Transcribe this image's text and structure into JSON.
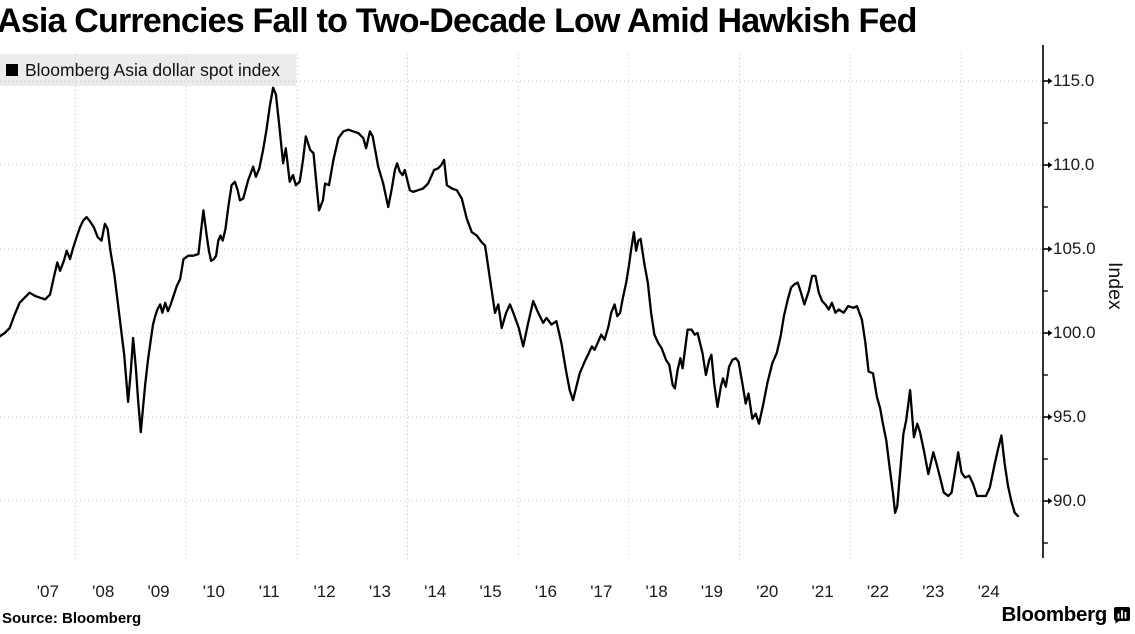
{
  "header": {
    "title": "Asia Currencies Fall to Two-Decade Low Amid Hawkish Fed"
  },
  "legend": {
    "label": "Bloomberg Asia dollar spot index",
    "swatch_color": "#000000"
  },
  "footer": {
    "source": "Source: Bloomberg",
    "brand": "Bloomberg",
    "brand_icon": "bloomberg-chart-icon"
  },
  "colors": {
    "line": "#000000",
    "gridline": "#c3c3c3",
    "legend_background": "#ececec",
    "background": "#ffffff"
  },
  "chart_data": {
    "type": "line",
    "title": "Asia Currencies Fall to Two-Decade Low Amid Hawkish Fed",
    "xlabel": "",
    "ylabel": "Index",
    "ylim": [
      86.5,
      117.1
    ],
    "x_range": [
      2006.63,
      2025.48
    ],
    "grid": true,
    "legend_position": "top-left",
    "yticks": [
      115,
      110,
      105,
      100,
      95,
      90
    ],
    "ytick_labels": [
      "115.0",
      "110.0",
      "105.0",
      "100.0",
      "95.0",
      "90.0"
    ],
    "yticks_minor": [
      112.5,
      107.5,
      102.5,
      97.5,
      92.5,
      87.5
    ],
    "x_tick_labels": [
      "'07",
      "'08",
      "'09",
      "'10",
      "'11",
      "'12",
      "'13",
      "'14",
      "'15",
      "'16",
      "'17",
      "'18",
      "'19",
      "'20",
      "'21",
      "'22",
      "'23",
      "'24"
    ],
    "x_tick_years": [
      2007,
      2008,
      2009,
      2010,
      2011,
      2012,
      2013,
      2014,
      2015,
      2016,
      2017,
      2018,
      2019,
      2020,
      2021,
      2022,
      2023,
      2024
    ],
    "grid_years": [
      2008,
      2010,
      2012,
      2014,
      2016,
      2018,
      2020,
      2022,
      2024
    ],
    "series": [
      {
        "name": "Bloomberg Asia dollar spot index",
        "color": "#000000",
        "x": [
          2006.63,
          2006.72,
          2006.81,
          2006.9,
          2006.99,
          2007.08,
          2007.17,
          2007.27,
          2007.36,
          2007.45,
          2007.54,
          2007.6,
          2007.67,
          2007.72,
          2007.79,
          2007.84,
          2007.9,
          2007.96,
          2008.02,
          2008.08,
          2008.14,
          2008.2,
          2008.27,
          2008.33,
          2008.4,
          2008.47,
          2008.53,
          2008.58,
          2008.63,
          2008.7,
          2008.76,
          2008.82,
          2008.88,
          2008.95,
          2009.0,
          2009.04,
          2009.09,
          2009.13,
          2009.18,
          2009.22,
          2009.26,
          2009.31,
          2009.36,
          2009.4,
          2009.44,
          2009.48,
          2009.53,
          2009.57,
          2009.62,
          2009.67,
          2009.72,
          2009.77,
          2009.83,
          2009.89,
          2009.95,
          2010.04,
          2010.13,
          2010.22,
          2010.31,
          2010.37,
          2010.41,
          2010.45,
          2010.5,
          2010.54,
          2010.58,
          2010.62,
          2010.66,
          2010.71,
          2010.76,
          2010.82,
          2010.88,
          2010.93,
          2010.97,
          2011.03,
          2011.12,
          2011.21,
          2011.26,
          2011.32,
          2011.39,
          2011.45,
          2011.51,
          2011.57,
          2011.62,
          2011.68,
          2011.75,
          2011.8,
          2011.87,
          2011.93,
          2011.98,
          2012.05,
          2012.11,
          2012.16,
          2012.24,
          2012.3,
          2012.4,
          2012.47,
          2012.51,
          2012.58,
          2012.66,
          2012.75,
          2012.84,
          2012.93,
          2013.02,
          2013.11,
          2013.2,
          2013.25,
          2013.32,
          2013.37,
          2013.47,
          2013.56,
          2013.65,
          2013.71,
          2013.77,
          2013.81,
          2013.86,
          2013.91,
          2013.95,
          2014.04,
          2014.1,
          2014.19,
          2014.28,
          2014.37,
          2014.48,
          2014.55,
          2014.61,
          2014.66,
          2014.71,
          2014.8,
          2014.89,
          2014.98,
          2015.07,
          2015.16,
          2015.25,
          2015.34,
          2015.4,
          2015.49,
          2015.58,
          2015.64,
          2015.7,
          2015.78,
          2015.85,
          2015.91,
          2016.01,
          2016.09,
          2016.18,
          2016.27,
          2016.36,
          2016.45,
          2016.51,
          2016.6,
          2016.69,
          2016.78,
          2016.86,
          2016.93,
          2016.99,
          2017.11,
          2017.2,
          2017.26,
          2017.33,
          2017.38,
          2017.5,
          2017.56,
          2017.63,
          2017.68,
          2017.74,
          2017.79,
          2017.84,
          2017.89,
          2017.95,
          2018.0,
          2018.04,
          2018.09,
          2018.13,
          2018.17,
          2018.21,
          2018.28,
          2018.34,
          2018.4,
          2018.46,
          2018.53,
          2018.59,
          2018.67,
          2018.73,
          2018.79,
          2018.83,
          2018.88,
          2018.93,
          2018.97,
          2019.06,
          2019.13,
          2019.19,
          2019.24,
          2019.33,
          2019.39,
          2019.45,
          2019.49,
          2019.54,
          2019.6,
          2019.66,
          2019.7,
          2019.75,
          2019.81,
          2019.87,
          2019.93,
          2019.98,
          2020.05,
          2020.11,
          2020.16,
          2020.23,
          2020.29,
          2020.35,
          2020.43,
          2020.5,
          2020.59,
          2020.67,
          2020.74,
          2020.8,
          2020.87,
          2020.93,
          2020.99,
          2021.05,
          2021.11,
          2021.17,
          2021.25,
          2021.31,
          2021.37,
          2021.43,
          2021.49,
          2021.55,
          2021.61,
          2021.67,
          2021.73,
          2021.79,
          2021.88,
          2021.96,
          2022.06,
          2022.12,
          2022.21,
          2022.27,
          2022.33,
          2022.41,
          2022.48,
          2022.54,
          2022.59,
          2022.65,
          2022.71,
          2022.77,
          2022.81,
          2022.85,
          2022.9,
          2022.96,
          2023.01,
          2023.08,
          2023.15,
          2023.21,
          2023.26,
          2023.33,
          2023.41,
          2023.5,
          2023.56,
          2023.63,
          2023.69,
          2023.77,
          2023.83,
          2023.89,
          2023.95,
          2024.01,
          2024.07,
          2024.15,
          2024.22,
          2024.29,
          2024.37,
          2024.45,
          2024.52,
          2024.61,
          2024.67,
          2024.73,
          2024.79,
          2024.85,
          2024.91,
          2024.97,
          2025.03
        ],
        "values": [
          99.8,
          100.0,
          100.3,
          101.1,
          101.8,
          102.1,
          102.4,
          102.2,
          102.1,
          102.0,
          102.3,
          103.2,
          104.2,
          103.7,
          104.3,
          104.9,
          104.4,
          105.1,
          105.7,
          106.3,
          106.7,
          106.9,
          106.6,
          106.3,
          105.7,
          105.5,
          106.5,
          106.2,
          104.9,
          103.5,
          101.9,
          100.3,
          98.7,
          95.9,
          97.8,
          99.7,
          97.9,
          96.0,
          94.1,
          95.6,
          97.0,
          98.4,
          99.6,
          100.5,
          101.0,
          101.4,
          101.7,
          101.2,
          101.8,
          101.3,
          101.7,
          102.2,
          102.8,
          103.2,
          104.4,
          104.6,
          104.6,
          104.7,
          107.3,
          105.8,
          104.9,
          104.3,
          104.4,
          104.6,
          105.5,
          105.8,
          105.5,
          106.2,
          107.5,
          108.8,
          109.0,
          108.5,
          107.9,
          108.0,
          109.1,
          109.9,
          109.3,
          109.8,
          110.9,
          112.1,
          113.5,
          114.6,
          114.2,
          112.4,
          110.1,
          111.0,
          109.0,
          109.4,
          108.8,
          109.0,
          110.3,
          111.7,
          110.9,
          110.7,
          107.3,
          107.9,
          108.9,
          108.8,
          110.3,
          111.6,
          112.0,
          112.1,
          112.0,
          111.9,
          111.6,
          111.0,
          112.0,
          111.7,
          109.9,
          108.9,
          107.5,
          108.5,
          109.7,
          110.1,
          109.6,
          109.4,
          109.7,
          108.5,
          108.4,
          108.5,
          108.6,
          108.9,
          109.7,
          109.8,
          110.0,
          110.3,
          108.8,
          108.6,
          108.5,
          108.0,
          106.8,
          106.0,
          105.8,
          105.4,
          105.2,
          103.2,
          101.2,
          101.7,
          100.3,
          101.2,
          101.7,
          101.2,
          100.3,
          99.2,
          100.6,
          101.9,
          101.2,
          100.6,
          100.9,
          100.5,
          100.7,
          99.4,
          97.8,
          96.6,
          96.0,
          97.6,
          98.3,
          98.7,
          99.2,
          99.0,
          99.9,
          99.6,
          100.4,
          101.2,
          101.7,
          101.0,
          101.2,
          102.1,
          103.0,
          104.0,
          105.0,
          106.0,
          104.9,
          105.5,
          105.6,
          104.1,
          103.0,
          101.2,
          99.9,
          99.4,
          99.1,
          98.4,
          98.1,
          96.9,
          96.7,
          97.8,
          98.5,
          97.9,
          100.2,
          100.2,
          99.9,
          100.0,
          98.8,
          97.5,
          98.4,
          98.7,
          97.0,
          95.6,
          96.8,
          97.3,
          96.8,
          98.0,
          98.4,
          98.5,
          98.3,
          97.0,
          95.8,
          96.4,
          94.9,
          95.2,
          94.6,
          95.8,
          97.0,
          98.2,
          98.8,
          99.8,
          101.0,
          102.0,
          102.7,
          102.9,
          103.0,
          102.4,
          101.7,
          102.5,
          103.4,
          103.4,
          102.4,
          101.9,
          101.7,
          101.4,
          101.8,
          101.2,
          101.4,
          101.2,
          101.6,
          101.5,
          101.6,
          100.8,
          99.5,
          97.7,
          97.6,
          96.2,
          95.5,
          94.6,
          93.6,
          92.0,
          90.5,
          89.3,
          89.7,
          91.7,
          94.0,
          94.8,
          96.6,
          93.8,
          94.6,
          94.1,
          93.0,
          91.6,
          92.9,
          92.2,
          91.3,
          90.5,
          90.3,
          90.5,
          91.7,
          92.9,
          91.7,
          91.4,
          91.5,
          91.0,
          90.3,
          90.3,
          90.3,
          90.8,
          92.2,
          93.1,
          93.9,
          92.2,
          90.9,
          90.0,
          89.3,
          89.1
        ]
      }
    ]
  }
}
